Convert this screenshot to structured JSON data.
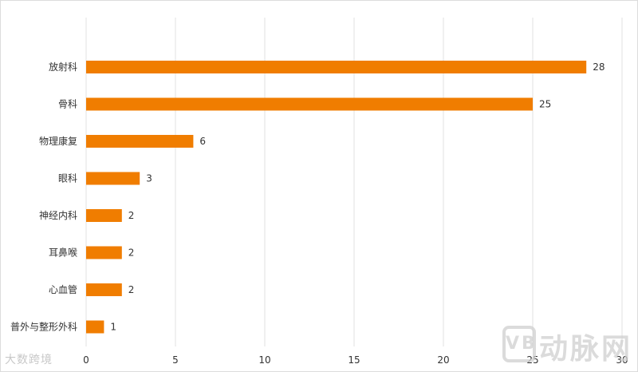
{
  "chart_data": {
    "type": "bar",
    "orientation": "horizontal",
    "categories": [
      "放射科",
      "骨科",
      "物理康复",
      "眼科",
      "神经内科",
      "耳鼻喉",
      "心血管",
      "普外与整形外科"
    ],
    "values": [
      28,
      25,
      6,
      3,
      2,
      2,
      2,
      1
    ],
    "xlim": [
      0,
      30
    ],
    "xticks": [
      0,
      5,
      10,
      15,
      20,
      25,
      30
    ],
    "grid": "vertical",
    "bar_color": "#F07D00",
    "title": "",
    "xlabel": "",
    "ylabel": ""
  },
  "watermarks": {
    "left_text": "大数跨境",
    "right_badge": "VB",
    "right_text": "动脉网"
  },
  "colors": {
    "grid": "#e0e0e0",
    "text": "#333333"
  }
}
